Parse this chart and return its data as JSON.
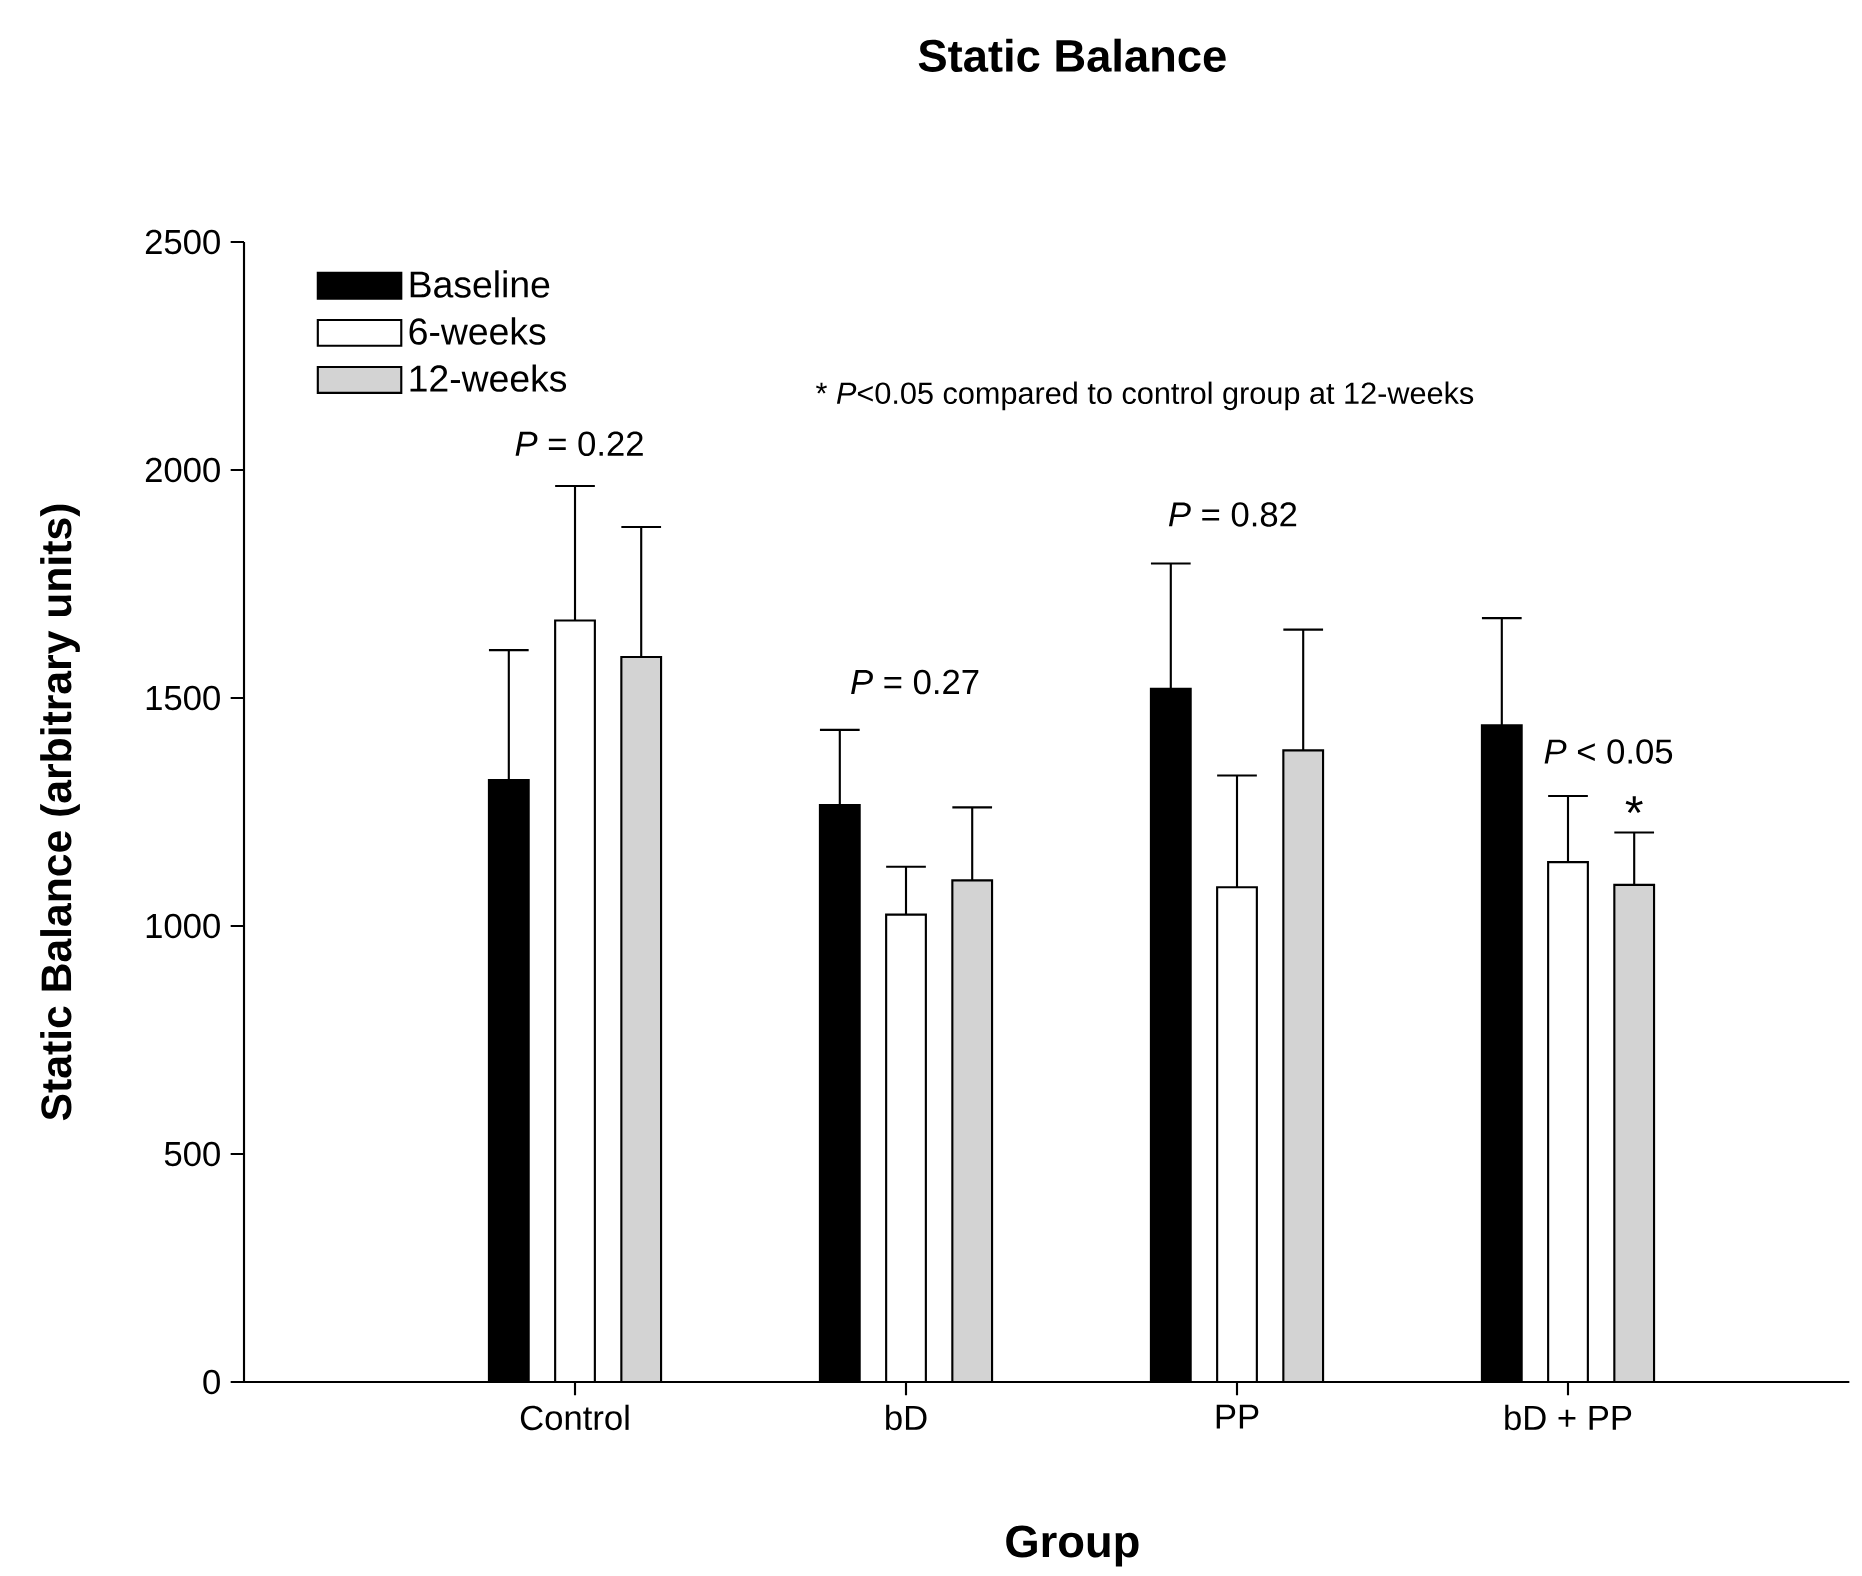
{
  "chart_data": {
    "type": "bar",
    "title": "Static Balance",
    "xlabel": "Group",
    "ylabel": "Static Balance (arbitrary units)",
    "categories": [
      "Control",
      "bD",
      "PP",
      "bD + PP"
    ],
    "series": [
      {
        "name": "Baseline",
        "color": "#000000",
        "values": [
          1320,
          1265,
          1520,
          1440
        ],
        "errors": [
          [
            1320,
            1605
          ],
          [
            1265,
            1430
          ],
          [
            1520,
            1795
          ],
          [
            1440,
            1675
          ]
        ]
      },
      {
        "name": "6-weeks",
        "color": "#ffffff",
        "values": [
          1670,
          1025,
          1085,
          1140
        ],
        "errors": [
          [
            1670,
            1965
          ],
          [
            1025,
            1130
          ],
          [
            1085,
            1330
          ],
          [
            1140,
            1285
          ]
        ]
      },
      {
        "name": "12-weeks",
        "color": "#d3d3d3",
        "values": [
          1590,
          1100,
          1385,
          1090
        ],
        "errors": [
          [
            1590,
            1875
          ],
          [
            1100,
            1260
          ],
          [
            1385,
            1650
          ],
          [
            1090,
            1205
          ]
        ],
        "value_labels": [
          null,
          null,
          null,
          "*"
        ]
      }
    ],
    "ylim": [
      0,
      2500
    ],
    "yticks": [
      0,
      500,
      1000,
      1500,
      2000,
      2500
    ],
    "grid": false,
    "legend": "top left",
    "annotations": [
      "*P* = 0.22",
      "*P* = 0.27",
      "*P* = 0.82",
      "*P* < 0.05",
      "* *P*<0.05 compared to control group at 12-weeks"
    ]
  }
}
